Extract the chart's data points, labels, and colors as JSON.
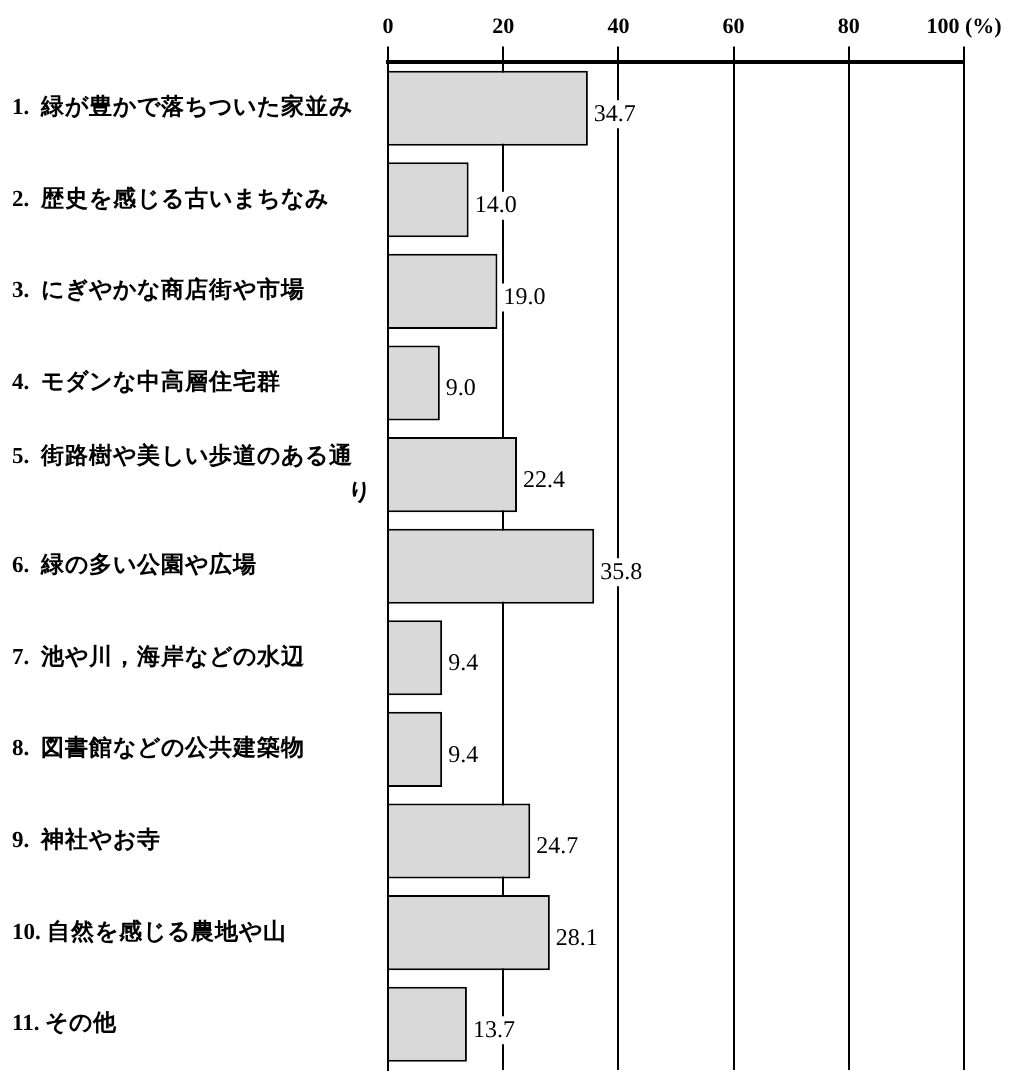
{
  "chart_data": {
    "type": "bar",
    "orientation": "horizontal",
    "categories": [
      "1.  緑が豊かで落ちついた家並み",
      "2.  歴史を感じる古いまちなみ",
      "3.  にぎやかな商店街や市場",
      "4.  モダンな中高層住宅群",
      "5.  街路樹や美しい歩道のある通り",
      "6.  緑の多い公園や広場",
      "7.  池や川，海岸などの水辺",
      "8.  図書館などの公共建築物",
      "9.  神社やお寺",
      "10. 自然を感じる農地や山",
      "11. その他"
    ],
    "values": [
      34.7,
      14.0,
      19.0,
      9.0,
      22.4,
      35.8,
      9.4,
      9.4,
      24.7,
      28.1,
      13.7
    ],
    "value_labels": [
      "34.7",
      "14.0",
      "19.0",
      "9.0",
      "22.4",
      "35.8",
      "9.4",
      "9.4",
      "24.7",
      "28.1",
      "13.7"
    ],
    "color": "#d9d9d9",
    "xlim": [
      0,
      100
    ],
    "xticks": [
      0,
      20,
      40,
      60,
      80,
      {
        "value": 100,
        "label": "100 (%)"
      }
    ],
    "grid": "x",
    "legend": false
  }
}
